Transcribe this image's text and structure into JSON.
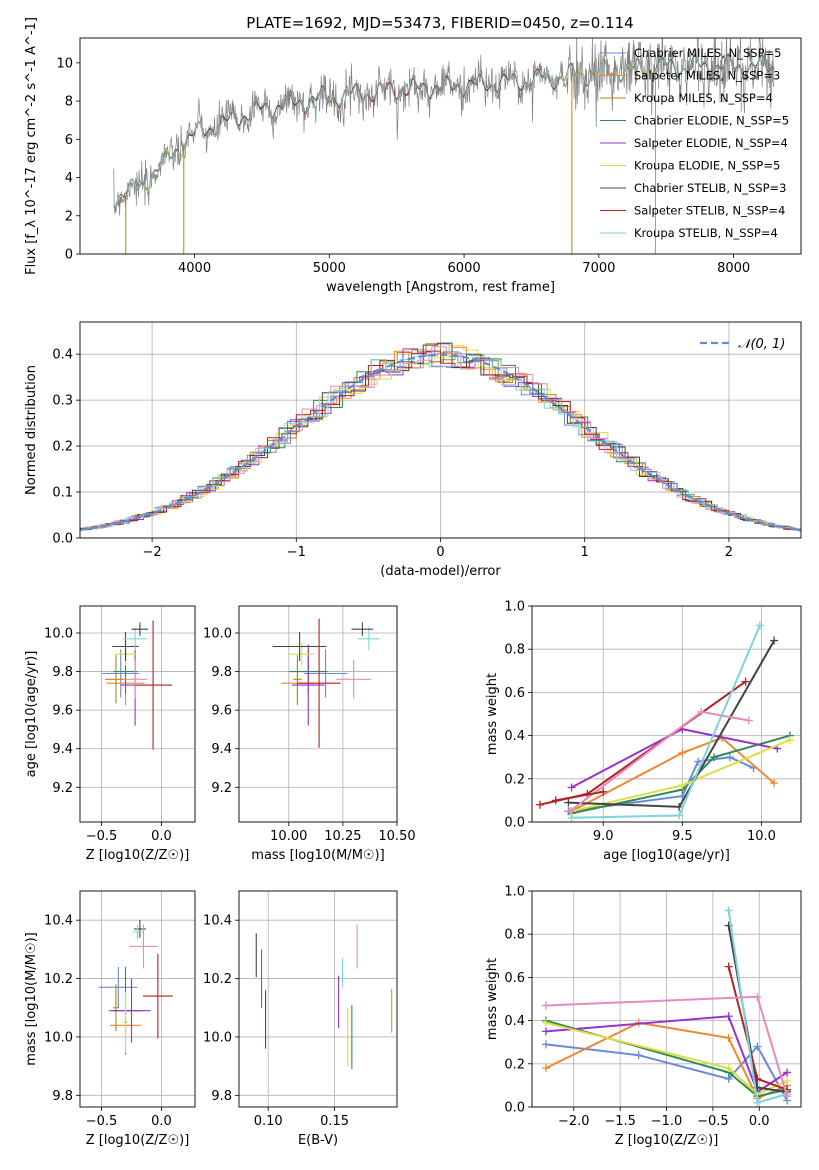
{
  "figure_title": "PLATE=1692, MJD=53473, FIBERID=0450, z=0.114",
  "colors": {
    "chabrier_miles": "#6a8bd8",
    "salpeter_miles": "#ee8833",
    "kroupa_miles": "#b8860b",
    "chabrier_elodie": "#2e8b57",
    "salpeter_elodie": "#9932cc",
    "kroupa_elodie": "#dddd44",
    "chabrier_stelib": "#444444",
    "salpeter_stelib": "#b22222",
    "kroupa_stelib": "#7fd3dd",
    "data": "#808080",
    "normal": "#5b8ed6",
    "pink": "#e68ac0",
    "lime": "#c6e85a"
  },
  "chart_data": [
    {
      "id": "spectrum",
      "type": "line",
      "xlabel": "wavelength [Angstrom, rest frame]",
      "ylabel": "Flux [f_λ 10^-17 erg cm^-2 s^-1 A^-1]",
      "xlim": [
        3150,
        8500
      ],
      "ylim": [
        0,
        11.3
      ],
      "xticks": [
        "4000",
        "5000",
        "6000",
        "7000",
        "8000"
      ],
      "yticks": [
        "0",
        "2",
        "4",
        "6",
        "8",
        "10"
      ],
      "xrange_data": [
        3400,
        8300
      ],
      "legend_position": "top-right",
      "legend": [
        "Chabrier MILES, N_SSP=5",
        "Salpeter MILES, N_SSP=3",
        "Kroupa MILES, N_SSP=4",
        "Chabrier ELODIE, N_SSP=5",
        "Salpeter ELODIE, N_SSP=4",
        "Kroupa ELODIE, N_SSP=5",
        "Chabrier STELIB, N_SSP=3",
        "Salpeter STELIB, N_SSP=4",
        "Kroupa STELIB, N_SSP=4"
      ],
      "continuum": {
        "x": [
          3400,
          3600,
          3800,
          4000,
          4500,
          5000,
          5500,
          6000,
          6500,
          7000,
          7500,
          8000,
          8300
        ],
        "y": [
          3.0,
          3.5,
          5.0,
          6.3,
          7.6,
          8.2,
          8.6,
          8.8,
          9.1,
          9.5,
          9.8,
          9.8,
          9.8
        ]
      },
      "drop_lines": [
        {
          "x": 3490
        },
        {
          "x": 3920
        },
        {
          "x": 6800
        },
        {
          "x": 7420
        }
      ]
    },
    {
      "id": "residuals",
      "type": "line",
      "xlabel": "(data-model)/error",
      "ylabel": "Normed distribution",
      "xlim": [
        -2.5,
        2.5
      ],
      "ylim": [
        0,
        0.47
      ],
      "xticks": [
        "−2",
        "−1",
        "0",
        "1",
        "2"
      ],
      "yticks": [
        "0.0",
        "0.1",
        "0.2",
        "0.3",
        "0.4"
      ],
      "grid": true,
      "legend": [
        "𝒩(0, 1)"
      ],
      "legend_position": "top-right",
      "bin_width": 0.1
    },
    {
      "id": "age_vs_Z",
      "type": "scatter",
      "xlabel": "Z [log10(Z/Z☉)]",
      "ylabel": "age [log10(age/yr)]",
      "xlim": [
        -0.68,
        0.28
      ],
      "ylim": [
        9.02,
        10.14
      ],
      "xticks": [
        "−0.5",
        "0.0"
      ],
      "yticks": [
        "9.2",
        "9.4",
        "9.6",
        "9.8",
        "10.0"
      ],
      "grid": true,
      "points": [
        {
          "c": "chabrier_miles",
          "x": -0.34,
          "y": 9.79,
          "xe": 0.31,
          "ye": 0.25
        },
        {
          "c": "salpeter_miles",
          "x": -0.3,
          "y": 9.74,
          "xe": 0.32,
          "ye": 0.23
        },
        {
          "c": "kroupa_miles",
          "x": -0.38,
          "y": 9.76,
          "xe": 0.18,
          "ye": 0.25
        },
        {
          "c": "chabrier_elodie",
          "x": -0.3,
          "y": 9.8,
          "xe": 0.2,
          "ye": 0.23
        },
        {
          "c": "salpeter_elodie",
          "x": -0.22,
          "y": 9.73,
          "xe": 0.24,
          "ye": 0.42
        },
        {
          "c": "kroupa_elodie",
          "x": -0.3,
          "y": 9.89,
          "xe": 0.17,
          "ye": 0.12
        },
        {
          "c": "chabrier_stelib",
          "x": -0.3,
          "y": 9.93,
          "xe": 0.22,
          "ye": 0.15
        },
        {
          "c": "salpeter_stelib",
          "x": -0.07,
          "y": 9.73,
          "xe": 0.32,
          "ye": 0.67
        },
        {
          "c": "kroupa_stelib",
          "x": -0.22,
          "y": 9.97,
          "xe": 0.2,
          "ye": 0.12
        },
        {
          "c": "pink",
          "x": -0.22,
          "y": 9.76,
          "xe": 0.2,
          "ye": 0.2
        },
        {
          "c": "chabrier_stelib",
          "x": -0.18,
          "y": 10.02,
          "xe": 0.14,
          "ye": 0.07
        }
      ]
    },
    {
      "id": "age_vs_mass",
      "type": "scatter",
      "xlabel": "mass [log10(M/M☉)]",
      "ylabel": "",
      "xlim": [
        9.77,
        10.5
      ],
      "ylim": [
        9.02,
        10.14
      ],
      "xticks": [
        "10.00",
        "10.25",
        "10.50"
      ],
      "yticks": [
        "9.2",
        "9.4",
        "9.6",
        "9.8",
        "10.0"
      ],
      "grid": true,
      "points": [
        {
          "c": "chabrier_miles",
          "x": 10.17,
          "y": 9.79,
          "xe": 0.2,
          "ye": 0.25
        },
        {
          "c": "salpeter_miles",
          "x": 10.04,
          "y": 9.74,
          "xe": 0.15,
          "ye": 0.23
        },
        {
          "c": "kroupa_miles",
          "x": 10.04,
          "y": 9.76,
          "xe": 0.04,
          "ye": 0.25
        },
        {
          "c": "chabrier_elodie",
          "x": 10.09,
          "y": 9.8,
          "xe": 0.18,
          "ye": 0.23
        },
        {
          "c": "salpeter_elodie",
          "x": 10.09,
          "y": 9.73,
          "xe": 0.15,
          "ye": 0.42
        },
        {
          "c": "kroupa_elodie",
          "x": 10.06,
          "y": 9.89,
          "xe": 0.12,
          "ye": 0.12
        },
        {
          "c": "chabrier_stelib",
          "x": 10.05,
          "y": 9.93,
          "xe": 0.25,
          "ye": 0.15
        },
        {
          "c": "salpeter_stelib",
          "x": 10.14,
          "y": 9.74,
          "xe": 0.2,
          "ye": 0.67
        },
        {
          "c": "kroupa_stelib",
          "x": 10.37,
          "y": 9.97,
          "xe": 0.1,
          "ye": 0.12
        },
        {
          "c": "pink",
          "x": 10.3,
          "y": 9.76,
          "xe": 0.16,
          "ye": 0.2
        },
        {
          "c": "chabrier_stelib",
          "x": 10.34,
          "y": 10.02,
          "xe": 0.1,
          "ye": 0.07
        }
      ]
    },
    {
      "id": "massweight_vs_age",
      "type": "line",
      "xlabel": "age  [log10(age/yr)]",
      "ylabel": "mass weight",
      "xlim": [
        8.55,
        10.25
      ],
      "ylim": [
        0,
        1.0
      ],
      "xticks": [
        "9.0",
        "9.5",
        "10.0"
      ],
      "yticks": [
        "0.0",
        "0.2",
        "0.4",
        "0.6",
        "0.8",
        "1.0"
      ],
      "grid": true,
      "series": [
        {
          "c": "chabrier_miles",
          "x": [
            8.78,
            9.5,
            9.6,
            9.8,
            9.95
          ],
          "y": [
            0.05,
            0.12,
            0.28,
            0.3,
            0.25
          ]
        },
        {
          "c": "salpeter_miles",
          "x": [
            8.8,
            9.5,
            9.75,
            10.08
          ],
          "y": [
            0.05,
            0.32,
            0.39,
            0.18
          ]
        },
        {
          "c": "chabrier_elodie",
          "x": [
            8.8,
            9.5,
            9.7,
            10.18
          ],
          "y": [
            0.04,
            0.15,
            0.3,
            0.4
          ]
        },
        {
          "c": "salpeter_elodie",
          "x": [
            8.8,
            9.5,
            10.1
          ],
          "y": [
            0.16,
            0.43,
            0.34
          ]
        },
        {
          "c": "kroupa_elodie",
          "x": [
            8.8,
            9.5,
            10.18
          ],
          "y": [
            0.05,
            0.17,
            0.38
          ]
        },
        {
          "c": "chabrier_stelib",
          "x": [
            8.78,
            9.48,
            10.08
          ],
          "y": [
            0.09,
            0.07,
            0.84
          ]
        },
        {
          "c": "salpeter_stelib",
          "x": [
            8.6,
            8.9,
            9.9
          ],
          "y": [
            0.08,
            0.13,
            0.65
          ]
        },
        {
          "c": "kroupa_stelib",
          "x": [
            8.8,
            9.48,
            9.99
          ],
          "y": [
            0.02,
            0.03,
            0.91
          ]
        },
        {
          "c": "pink",
          "x": [
            8.79,
            9.62,
            9.92
          ],
          "y": [
            0.05,
            0.51,
            0.47
          ]
        },
        {
          "c": "salpeter_stelib",
          "x": [
            8.7,
            9.0
          ],
          "y": [
            0.1,
            0.14
          ]
        }
      ]
    },
    {
      "id": "mass_vs_Z",
      "type": "scatter",
      "xlabel": "Z [log10(Z/Z☉)]",
      "ylabel": "mass [log10(M/M☉)]",
      "xlim": [
        -0.68,
        0.28
      ],
      "ylim": [
        9.76,
        10.5
      ],
      "xticks": [
        "−0.5",
        "0.0"
      ],
      "yticks": [
        "9.8",
        "10.0",
        "10.2",
        "10.4"
      ],
      "grid": true,
      "points": [
        {
          "c": "chabrier_miles",
          "x": -0.36,
          "y": 10.17,
          "xe": 0.32,
          "ye": 0.14
        },
        {
          "c": "salpeter_miles",
          "x": -0.3,
          "y": 10.04,
          "xe": 0.26,
          "ye": 0.05
        },
        {
          "c": "kroupa_miles",
          "x": -0.38,
          "y": 10.1,
          "xe": 0.05,
          "ye": 0.16
        },
        {
          "c": "chabrier_elodie",
          "x": -0.3,
          "y": 10.09,
          "xe": 0.28,
          "ye": 0.3
        },
        {
          "c": "salpeter_elodie",
          "x": -0.25,
          "y": 10.09,
          "xe": 0.32,
          "ye": 0.22
        },
        {
          "c": "kroupa_elodie",
          "x": -0.3,
          "y": 10.05,
          "xe": 0.05,
          "ye": 0.21
        },
        {
          "c": "chabrier_stelib",
          "x": -0.18,
          "y": 10.37,
          "xe": 0.1,
          "ye": 0.06
        },
        {
          "c": "salpeter_stelib",
          "x": -0.03,
          "y": 10.14,
          "xe": 0.25,
          "ye": 0.29
        },
        {
          "c": "kroupa_stelib",
          "x": -0.2,
          "y": 10.36,
          "xe": 0.08,
          "ye": 0.05
        },
        {
          "c": "pink",
          "x": -0.15,
          "y": 10.31,
          "xe": 0.24,
          "ye": 0.15
        }
      ]
    },
    {
      "id": "mass_vs_ebv",
      "type": "scatter",
      "xlabel": "E(B-V)",
      "ylabel": "",
      "xlim": [
        0.078,
        0.197
      ],
      "ylim": [
        9.76,
        10.5
      ],
      "xticks": [
        "0.10",
        "0.15"
      ],
      "yticks": [
        "9.8",
        "10.0",
        "10.2",
        "10.4"
      ],
      "grid": true,
      "points": [
        {
          "c": "chabrier_stelib",
          "x": 0.091,
          "y": 10.28,
          "xe": 0,
          "ye": 0.15
        },
        {
          "c": "chabrier_elodie",
          "x": 0.095,
          "y": 10.2,
          "xe": 0,
          "ye": 0.2
        },
        {
          "c": "salpeter_stelib",
          "x": 0.098,
          "y": 10.06,
          "xe": 0,
          "ye": 0.2
        },
        {
          "c": "salpeter_elodie",
          "x": 0.153,
          "y": 10.12,
          "xe": 0,
          "ye": 0.18
        },
        {
          "c": "kroupa_stelib",
          "x": 0.156,
          "y": 10.22,
          "xe": 0,
          "ye": 0.1
        },
        {
          "c": "kroupa_elodie",
          "x": 0.16,
          "y": 10.0,
          "xe": 0,
          "ye": 0.2
        },
        {
          "c": "chabrier_elodie",
          "x": 0.163,
          "y": 10.0,
          "xe": 0,
          "ye": 0.22
        },
        {
          "c": "pink",
          "x": 0.167,
          "y": 10.31,
          "xe": 0,
          "ye": 0.15
        },
        {
          "c": "salpeter_miles",
          "x": 0.193,
          "y": 10.09,
          "xe": 0,
          "ye": 0.15
        }
      ]
    },
    {
      "id": "massweight_vs_Z",
      "type": "line",
      "xlabel": "Z [log10(Z/Z☉)]",
      "ylabel": "mass weight",
      "xlim": [
        -2.45,
        0.45
      ],
      "ylim": [
        0,
        1.0
      ],
      "xticks": [
        "−2.0",
        "−1.5",
        "−1.0",
        "−0.5",
        "0.0"
      ],
      "yticks": [
        "0.0",
        "0.2",
        "0.4",
        "0.6",
        "0.8",
        "1.0"
      ],
      "grid": true,
      "series": [
        {
          "c": "chabrier_miles",
          "x": [
            -2.3,
            -1.3,
            -0.33,
            -0.02,
            0.3
          ],
          "y": [
            0.29,
            0.24,
            0.13,
            0.28,
            0.03
          ]
        },
        {
          "c": "salpeter_miles",
          "x": [
            -2.3,
            -1.3,
            -0.33,
            -0.02,
            0.3
          ],
          "y": [
            0.18,
            0.39,
            0.32,
            0.04,
            0.1
          ]
        },
        {
          "c": "chabrier_elodie",
          "x": [
            -2.3,
            -0.33,
            -0.02,
            0.3
          ],
          "y": [
            0.4,
            0.16,
            0.05,
            0.08
          ]
        },
        {
          "c": "salpeter_elodie",
          "x": [
            -2.3,
            -0.33,
            -0.02,
            0.3
          ],
          "y": [
            0.35,
            0.42,
            0.07,
            0.16
          ]
        },
        {
          "c": "kroupa_elodie",
          "x": [
            -2.3,
            -0.33,
            -0.02,
            0.3
          ],
          "y": [
            0.39,
            0.18,
            0.06,
            0.12
          ]
        },
        {
          "c": "chabrier_stelib",
          "x": [
            -0.33,
            -0.02,
            0.3
          ],
          "y": [
            0.84,
            0.09,
            0.07
          ]
        },
        {
          "c": "salpeter_stelib",
          "x": [
            -0.33,
            -0.02,
            0.3
          ],
          "y": [
            0.65,
            0.13,
            0.08
          ]
        },
        {
          "c": "kroupa_stelib",
          "x": [
            -0.33,
            -0.02,
            0.3
          ],
          "y": [
            0.91,
            0.02,
            0.06
          ]
        },
        {
          "c": "pink",
          "x": [
            -2.3,
            -0.02,
            0.3
          ],
          "y": [
            0.47,
            0.51,
            0.05
          ]
        }
      ]
    }
  ]
}
